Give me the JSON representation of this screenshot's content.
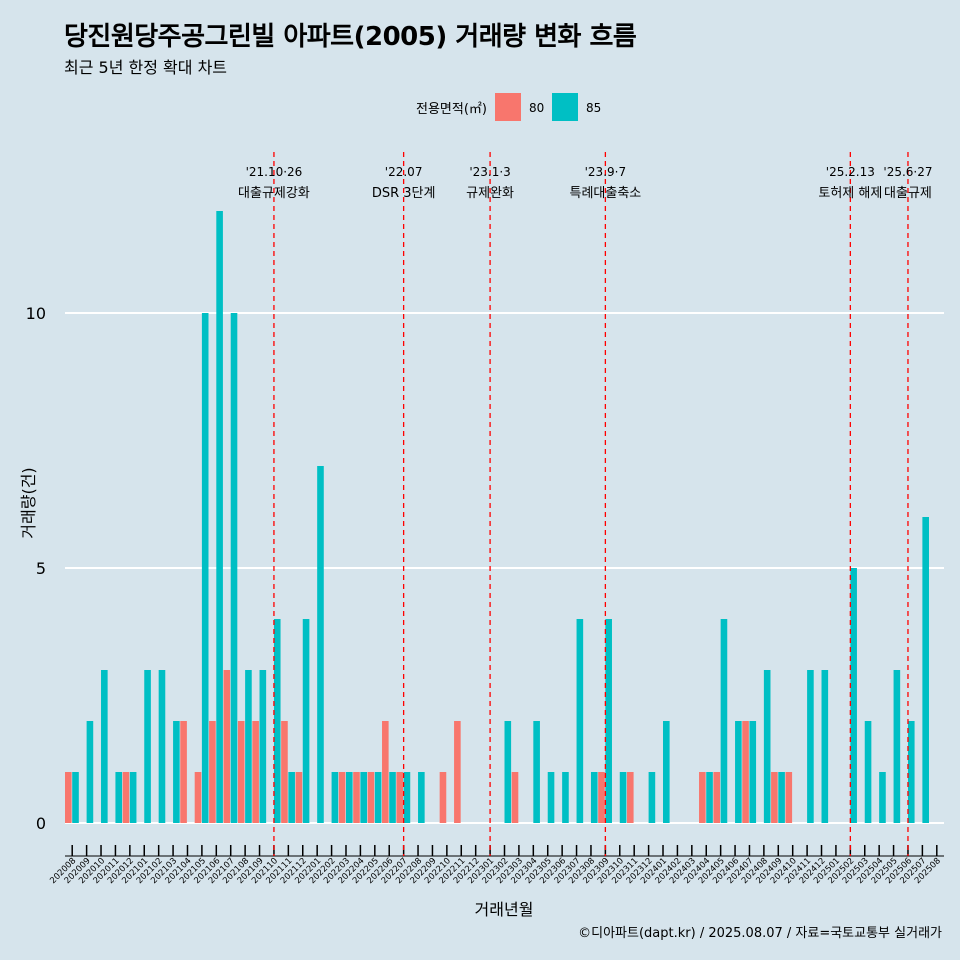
{
  "title": "당진원당주공그린빌 아파트(2005) 거래량 변화 흐름",
  "subtitle": "최근 5년 한정 확대 차트",
  "caption": "©디아파트(dapt.kr) / 2025.08.07 / 자료=국토교통부 실거래가",
  "chart_data": {
    "type": "bar",
    "xlabel": "거래년월",
    "ylabel": "거래량(건)",
    "ylim": [
      0,
      13
    ],
    "yticks": [
      0,
      5,
      10
    ],
    "grid": true,
    "legend": {
      "title": "전용면적(㎡)",
      "position": "top",
      "entries": [
        {
          "name": "80",
          "color": "#f8766d"
        },
        {
          "name": "85",
          "color": "#00bfc4"
        }
      ]
    },
    "categories": [
      "202008",
      "202009",
      "202010",
      "202011",
      "202012",
      "202101",
      "202102",
      "202103",
      "202104",
      "202105",
      "202106",
      "202107",
      "202108",
      "202109",
      "202110",
      "202111",
      "202112",
      "202201",
      "202202",
      "202203",
      "202204",
      "202205",
      "202206",
      "202207",
      "202208",
      "202209",
      "202210",
      "202211",
      "202212",
      "202301",
      "202302",
      "202303",
      "202304",
      "202305",
      "202306",
      "202307",
      "202308",
      "202309",
      "202310",
      "202311",
      "202312",
      "202401",
      "202402",
      "202403",
      "202404",
      "202405",
      "202406",
      "202407",
      "202408",
      "202409",
      "202410",
      "202411",
      "202412",
      "202501",
      "202502",
      "202503",
      "202504",
      "202505",
      "202506",
      "202507",
      "202508"
    ],
    "series": [
      {
        "name": "80",
        "color": "#f8766d",
        "values": [
          1,
          0,
          0,
          0,
          1,
          0,
          0,
          0,
          2,
          1,
          2,
          3,
          2,
          2,
          0,
          2,
          1,
          0,
          0,
          1,
          1,
          1,
          2,
          1,
          0,
          0,
          1,
          2,
          0,
          0,
          0,
          1,
          0,
          0,
          0,
          0,
          0,
          1,
          0,
          1,
          0,
          0,
          0,
          0,
          1,
          1,
          0,
          2,
          0,
          1,
          1,
          0,
          0,
          0,
          0,
          0,
          0,
          0,
          0,
          0,
          0
        ]
      },
      {
        "name": "85",
        "color": "#00bfc4",
        "values": [
          1,
          2,
          3,
          1,
          1,
          3,
          3,
          2,
          0,
          10,
          12,
          10,
          3,
          3,
          4,
          1,
          4,
          7,
          1,
          1,
          1,
          1,
          1,
          1,
          1,
          0,
          0,
          0,
          0,
          0,
          2,
          0,
          2,
          1,
          1,
          4,
          1,
          4,
          1,
          0,
          1,
          2,
          0,
          0,
          1,
          4,
          2,
          2,
          3,
          1,
          0,
          3,
          3,
          0,
          5,
          2,
          1,
          3,
          2,
          6,
          0
        ]
      }
    ],
    "annotations": [
      {
        "date": "'21.10·26",
        "label": "대출규제강화",
        "x": "202110"
      },
      {
        "date": "'22.07",
        "label": "DSR 3단계",
        "x": "202207"
      },
      {
        "date": "'23.1·3",
        "label": "규제완화",
        "x": "202301"
      },
      {
        "date": "'23.9·7",
        "label": "특례대출축소",
        "x": "202309"
      },
      {
        "date": "'25.2.13",
        "label": "토허제 해제",
        "x": "202502"
      },
      {
        "date": "'25.6·27",
        "label": "대출규제",
        "x": "202506"
      }
    ]
  }
}
